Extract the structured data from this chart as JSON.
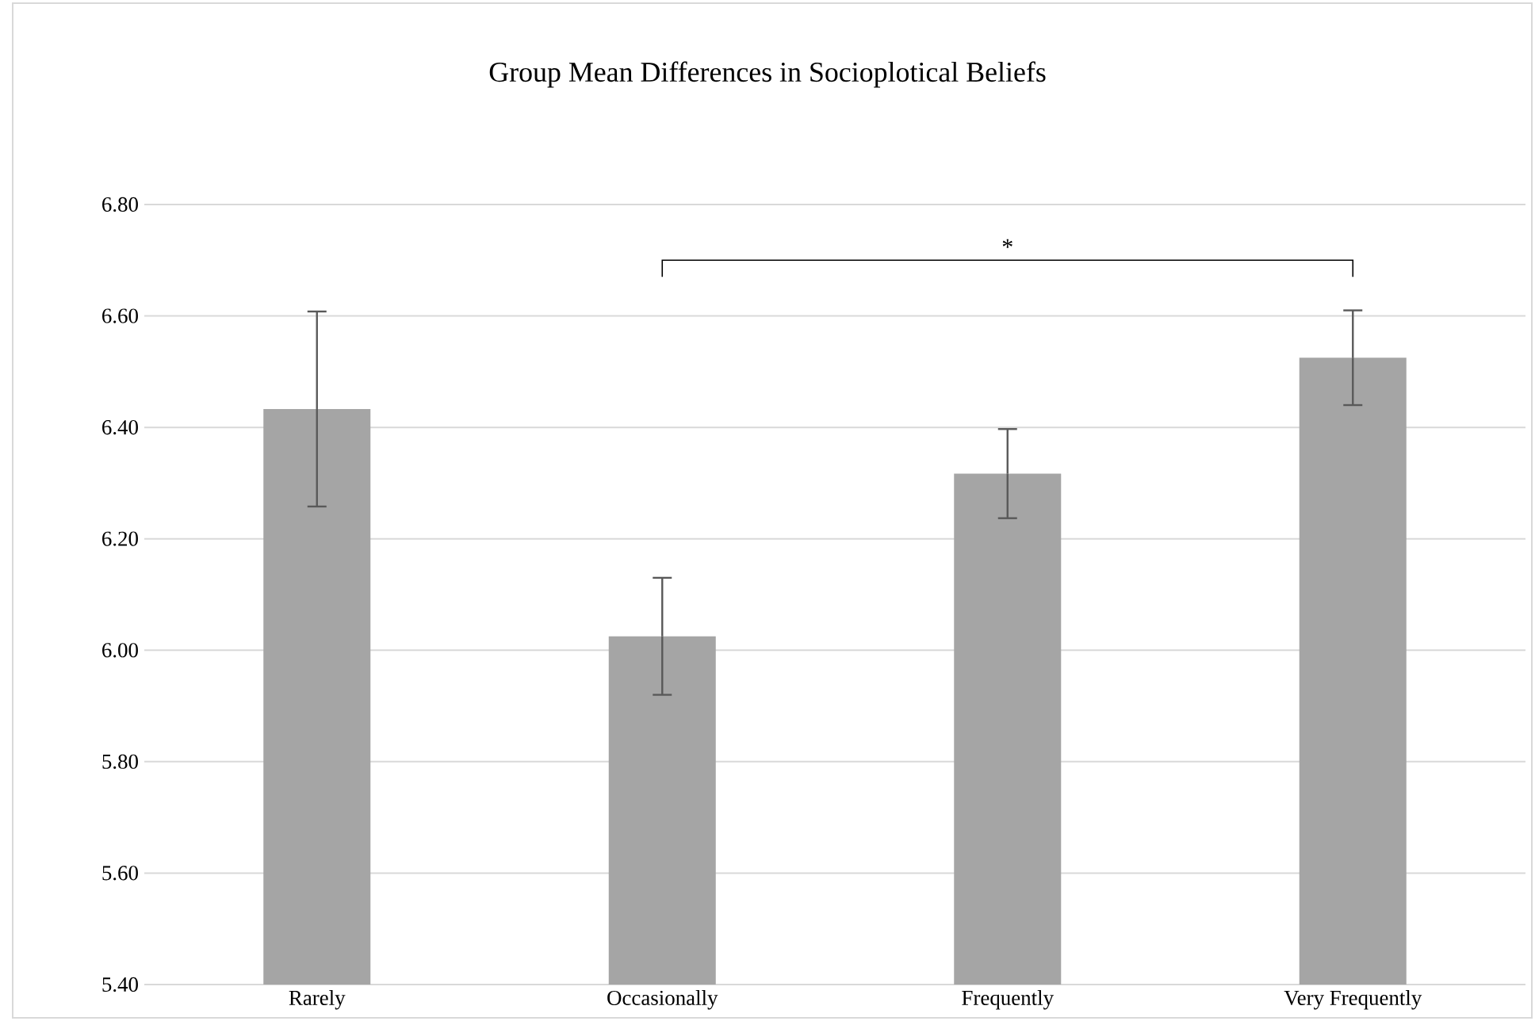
{
  "chart_data": {
    "type": "bar",
    "title": "Group Mean Differences in Socioplotical Beliefs",
    "categories": [
      "Rarely",
      "Occasionally",
      "Frequently",
      "Very Frequently"
    ],
    "values": [
      6.433,
      6.025,
      6.317,
      6.525
    ],
    "errors": [
      0.175,
      0.105,
      0.08,
      0.085
    ],
    "color": "#a5a5a5",
    "ylim": [
      5.4,
      6.8
    ],
    "yticks": [
      {
        "value": 5.4,
        "label": "5.40"
      },
      {
        "value": 5.6,
        "label": "5.60"
      },
      {
        "value": 5.8,
        "label": "5.80"
      },
      {
        "value": 6.0,
        "label": "6.00"
      },
      {
        "value": 6.2,
        "label": "6.20"
      },
      {
        "value": 6.4,
        "label": "6.40"
      },
      {
        "value": 6.6,
        "label": "6.60"
      },
      {
        "value": 6.8,
        "label": "6.80"
      }
    ],
    "grid": "y",
    "annotations": [
      "*"
    ]
  }
}
